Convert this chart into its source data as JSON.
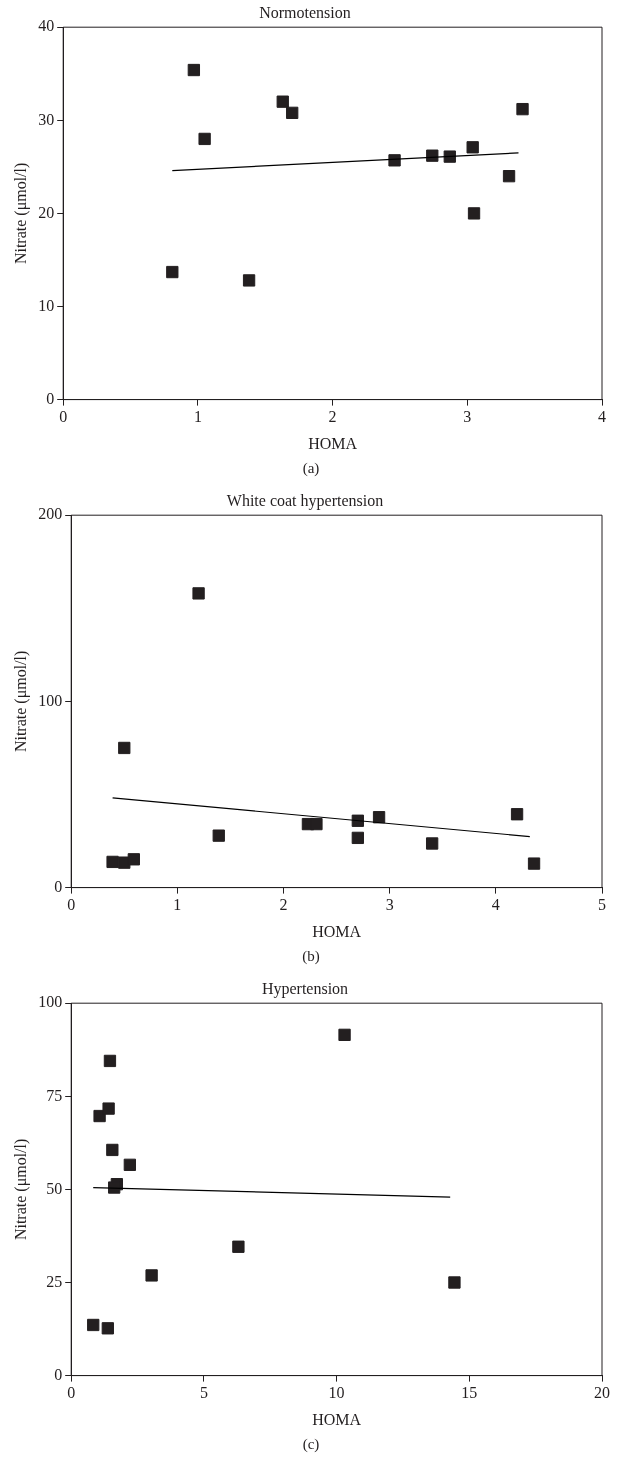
{
  "chart_data": [
    {
      "type": "scatter",
      "title": "Normotension",
      "xlabel": "HOMA",
      "ylabel": "Nitrate (μmol/l)",
      "xlim": [
        0,
        4
      ],
      "xticks": [
        0,
        1,
        2,
        3,
        4
      ],
      "ylim": [
        0,
        40
      ],
      "yticks": [
        0,
        10,
        20,
        30,
        40
      ],
      "grid": false,
      "legend": false,
      "marker": "square",
      "annotations": [
        "(a)"
      ],
      "series": [
        {
          "color": "#231f20",
          "x": [
            0.81,
            0.97,
            1.05,
            1.38,
            1.63,
            1.7,
            2.46,
            2.74,
            2.87,
            3.04,
            3.05,
            3.31,
            3.41
          ],
          "values": [
            13.7,
            35.4,
            28.0,
            12.8,
            32.0,
            30.8,
            25.7,
            26.2,
            26.1,
            27.1,
            20.0,
            24.0,
            31.2
          ]
        },
        {
          "type": "line",
          "marker": "none",
          "color": "#000000",
          "x": [
            0.81,
            3.38
          ],
          "values": [
            24.6,
            26.5
          ]
        }
      ]
    },
    {
      "type": "scatter",
      "title": "White coat hypertension",
      "xlabel": "HOMA",
      "ylabel": "Nitrate (μmol/l)",
      "xlim": [
        0,
        5
      ],
      "xticks": [
        0,
        1,
        2,
        3,
        4,
        5
      ],
      "ylim": [
        0,
        200
      ],
      "yticks": [
        0,
        100,
        200
      ],
      "grid": false,
      "legend": false,
      "marker": "square",
      "annotations": [
        "(b)"
      ],
      "series": [
        {
          "color": "#231f20",
          "x": [
            0.39,
            0.5,
            0.59,
            0.5,
            1.2,
            1.39,
            2.23,
            2.31,
            2.7,
            2.7,
            2.9,
            3.4,
            4.2,
            4.36
          ],
          "values": [
            13.8,
            13.4,
            15.2,
            75,
            158,
            27.9,
            34.1,
            34.1,
            35.9,
            26.7,
            37.8,
            23.7,
            39.4,
            12.9
          ]
        },
        {
          "type": "line",
          "marker": "none",
          "color": "#000000",
          "x": [
            0.39,
            4.32
          ],
          "values": [
            48.2,
            27.4
          ]
        }
      ]
    },
    {
      "type": "scatter",
      "title": "Hypertension",
      "xlabel": "HOMA",
      "ylabel": "Nitrate (μmol/l)",
      "xlim": [
        0,
        20
      ],
      "xticks": [
        0,
        5,
        10,
        15,
        20
      ],
      "ylim": [
        0,
        100
      ],
      "yticks": [
        0,
        25,
        50,
        75,
        100
      ],
      "grid": false,
      "legend": false,
      "marker": "square",
      "annotations": [
        "(c)"
      ],
      "series": [
        {
          "color": "#231f20",
          "x": [
            0.83,
            1.38,
            1.07,
            1.41,
            1.46,
            1.55,
            2.21,
            1.72,
            1.62,
            3.03,
            6.3,
            10.3,
            14.44
          ],
          "values": [
            13.6,
            12.7,
            69.7,
            71.7,
            84.5,
            60.6,
            56.6,
            51.4,
            50.5,
            26.9,
            34.6,
            91.5,
            25.0
          ]
        },
        {
          "type": "line",
          "marker": "none",
          "color": "#000000",
          "x": [
            0.83,
            14.28
          ],
          "values": [
            50.5,
            47.9
          ]
        }
      ]
    }
  ]
}
